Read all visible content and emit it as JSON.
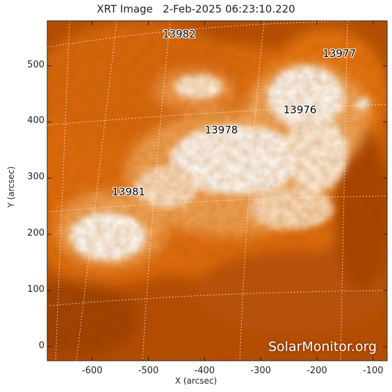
{
  "title": "XRT Image   2-Feb-2025 06:23:10.220",
  "axes": {
    "xlabel": "X (arcsec)",
    "ylabel": "Y (arcsec)",
    "xlim": [
      -680,
      -75
    ],
    "ylim": [
      -25,
      580
    ],
    "xticks": [
      -600,
      -500,
      -400,
      -300,
      -200,
      -100
    ],
    "yticks": [
      0,
      100,
      200,
      300,
      400,
      500
    ]
  },
  "active_regions": [
    {
      "label": "13982",
      "x": -440,
      "y": 555
    },
    {
      "label": "13977",
      "x": -155,
      "y": 520
    },
    {
      "label": "13976",
      "x": -225,
      "y": 420
    },
    {
      "label": "13978",
      "x": -365,
      "y": 385
    },
    {
      "label": "13981",
      "x": -530,
      "y": 275
    }
  ],
  "watermark": "SolarMonitor.org",
  "colors": {
    "background_dark": "#a03a00",
    "mid_orange": "#e8700e",
    "bright": "#ffffff",
    "grid": "#ffffff"
  }
}
